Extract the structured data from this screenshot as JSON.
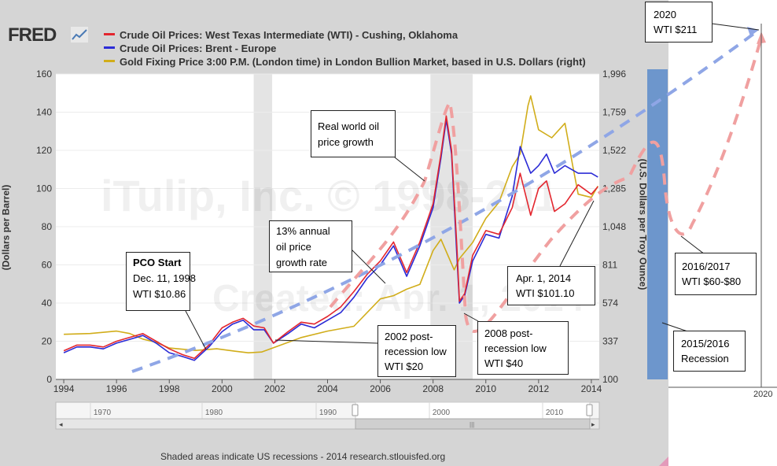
{
  "brand": "FRED",
  "legend": [
    {
      "label": "Crude Oil Prices: West Texas Intermediate (WTI) - Cushing, Oklahoma",
      "color": "#e3262e"
    },
    {
      "label": "Crude Oil Prices: Brent - Europe",
      "color": "#2b2bd6"
    },
    {
      "label": "Gold Fixing Price 3:00 P.M. (London time) in London Bullion Market, based in U.S. Dollars (right)",
      "color": "#d1ad1a"
    }
  ],
  "watermark": {
    "line1": "iTulip, Inc. © 1998-201",
    "line2": "Created: Apr. 1, 2014"
  },
  "annotations": {
    "pco": {
      "title": "PCO Start",
      "line2": "Dec. 11, 1998",
      "line3": "WTI $10.86"
    },
    "growth": {
      "line1": "13% annual",
      "line2": "oil price",
      "line3": "growth rate"
    },
    "realworld": {
      "line1": "Real world oil",
      "line2": "price growth"
    },
    "low2002": {
      "line1": "2002 post-",
      "line2": "recession low",
      "line3": "WTI $20"
    },
    "low2008": {
      "line1": "2008 post-",
      "line2": "recession low",
      "line3": "WTI $40"
    },
    "apr2014": {
      "line1": "Apr. 1, 2014",
      "line2": "WTI $101.10"
    },
    "y2020": {
      "line1": "2020",
      "line2": "WTI $211"
    },
    "y2016": {
      "line1": "2016/2017",
      "line2": "WTI $60-$80"
    },
    "rec2015": {
      "line1": "2015/2016",
      "line2": "Recession"
    }
  },
  "extended_axis_label": "2020",
  "source_text": "Shaded areas indicate US recessions - 2014 research.stlouisfed.org",
  "navigator": {
    "ticks": [
      "1970",
      "1980",
      "1990",
      "2000",
      "2010"
    ]
  },
  "colors": {
    "wti": "#e3262e",
    "brent": "#2b2bd6",
    "gold": "#d1ad1a",
    "recession": "#e4e4e4",
    "projection_blue": "#8fa6e6",
    "projection_red": "#f0a0a0",
    "recession_bar": "#6d96cc"
  },
  "chart_data": {
    "type": "line",
    "title": "",
    "xlabel": "",
    "ylabel": "(Dollars per Barrel)",
    "ylabel_right": "(U.S. Dollars per Troy Ounce)",
    "xlim": [
      1993.7,
      2014.3
    ],
    "ylim": [
      0,
      160
    ],
    "ylim_right": [
      100,
      1996
    ],
    "x_ticks": [
      "1994",
      "1996",
      "1998",
      "2000",
      "2002",
      "2004",
      "2006",
      "2008",
      "2010",
      "2012",
      "2014"
    ],
    "y_ticks": [
      0,
      20,
      40,
      60,
      80,
      100,
      120,
      140,
      160
    ],
    "y_ticks_right": [
      100,
      337,
      574,
      811,
      1048,
      1285,
      1522,
      1759,
      1996
    ],
    "recessions": [
      [
        2001.2,
        2001.9
      ],
      [
        2007.9,
        2009.5
      ]
    ],
    "series": [
      {
        "name": "Crude Oil Prices: West Texas Intermediate (WTI) - Cushing, Oklahoma",
        "axis": "left",
        "x": [
          1994.0,
          1994.5,
          1995.0,
          1995.5,
          1996.0,
          1996.5,
          1997.0,
          1997.5,
          1998.0,
          1998.5,
          1998.95,
          1999.5,
          2000.0,
          2000.4,
          2000.8,
          2001.2,
          2001.6,
          2001.95,
          2002.5,
          2003.0,
          2003.5,
          2004.0,
          2004.5,
          2005.0,
          2005.5,
          2006.0,
          2006.5,
          2007.0,
          2007.5,
          2008.0,
          2008.3,
          2008.5,
          2008.7,
          2008.9,
          2009.0,
          2009.2,
          2009.5,
          2010.0,
          2010.5,
          2011.0,
          2011.3,
          2011.7,
          2012.0,
          2012.3,
          2012.6,
          2013.0,
          2013.5,
          2014.0,
          2014.25
        ],
        "y": [
          15,
          18,
          18,
          17,
          20,
          22,
          24,
          20,
          16,
          13,
          11,
          18,
          27,
          30,
          32,
          28,
          27,
          19,
          25,
          30,
          29,
          33,
          38,
          46,
          55,
          62,
          72,
          56,
          72,
          92,
          118,
          138,
          120,
          70,
          41,
          45,
          65,
          78,
          76,
          90,
          108,
          86,
          100,
          104,
          88,
          92,
          102,
          97,
          101
        ]
      },
      {
        "name": "Crude Oil Prices: Brent - Europe",
        "axis": "left",
        "x": [
          1994.0,
          1994.5,
          1995.0,
          1995.5,
          1996.0,
          1996.5,
          1997.0,
          1997.5,
          1998.0,
          1998.5,
          1998.95,
          1999.5,
          2000.0,
          2000.4,
          2000.8,
          2001.2,
          2001.6,
          2001.95,
          2002.5,
          2003.0,
          2003.5,
          2004.0,
          2004.5,
          2005.0,
          2005.5,
          2006.0,
          2006.5,
          2007.0,
          2007.5,
          2008.0,
          2008.3,
          2008.5,
          2008.7,
          2008.9,
          2009.0,
          2009.2,
          2009.5,
          2010.0,
          2010.5,
          2011.0,
          2011.3,
          2011.7,
          2012.0,
          2012.3,
          2012.6,
          2013.0,
          2013.5,
          2014.0,
          2014.25
        ],
        "y": [
          14,
          17,
          17,
          16,
          19,
          21,
          23,
          19,
          14,
          12,
          10,
          17,
          25,
          29,
          31,
          26,
          26,
          19,
          24,
          29,
          27,
          31,
          35,
          43,
          53,
          60,
          70,
          54,
          70,
          90,
          116,
          136,
          118,
          65,
          40,
          44,
          62,
          76,
          74,
          96,
          122,
          108,
          112,
          118,
          108,
          112,
          108,
          108,
          106
        ]
      },
      {
        "name": "Gold Fixing Price 3:00 P.M. (London time) in London Bullion Market, based in U.S. Dollars (right)",
        "axis": "right",
        "x": [
          1994.0,
          1995.0,
          1996.0,
          1996.5,
          1997.0,
          1997.5,
          1998.0,
          1999.0,
          1999.8,
          2000.5,
          2001.0,
          2001.5,
          2002.0,
          2003.0,
          2004.0,
          2005.0,
          2006.0,
          2006.5,
          2007.0,
          2007.5,
          2008.0,
          2008.3,
          2008.8,
          2009.0,
          2009.5,
          2010.0,
          2010.5,
          2011.0,
          2011.3,
          2011.6,
          2011.7,
          2012.0,
          2012.5,
          2013.0,
          2013.3,
          2013.5,
          2014.0,
          2014.25
        ],
        "y": [
          380,
          385,
          400,
          385,
          350,
          330,
          295,
          280,
          290,
          275,
          265,
          270,
          300,
          360,
          400,
          430,
          600,
          620,
          660,
          690,
          900,
          970,
          780,
          850,
          950,
          1100,
          1200,
          1420,
          1500,
          1800,
          1860,
          1650,
          1600,
          1690,
          1420,
          1250,
          1230,
          1300
        ]
      }
    ]
  }
}
